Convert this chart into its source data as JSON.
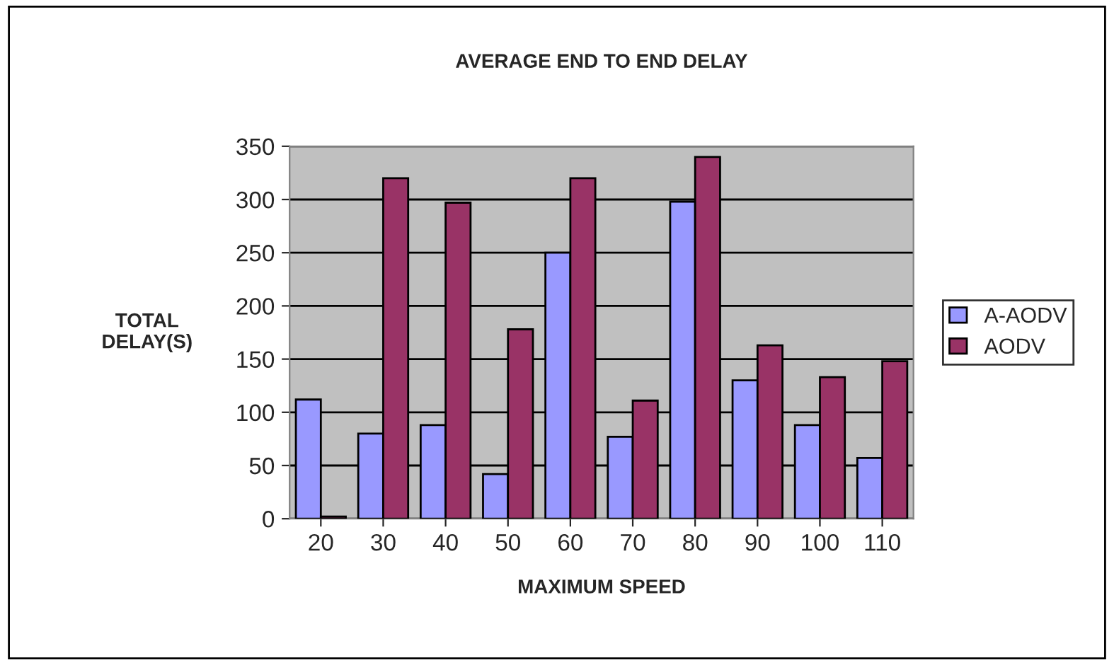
{
  "chart_data": {
    "type": "bar",
    "title": "AVERAGE END TO END DELAY",
    "xlabel": "MAXIMUM SPEED",
    "ylabel": "TOTAL\nDELAY(S)",
    "categories": [
      "20",
      "30",
      "40",
      "50",
      "60",
      "70",
      "80",
      "90",
      "100",
      "110"
    ],
    "series": [
      {
        "name": "A-AODV",
        "color": "#9999ff",
        "values": [
          112,
          80,
          88,
          42,
          250,
          77,
          298,
          130,
          88,
          57
        ]
      },
      {
        "name": "AODV",
        "color": "#993366",
        "values": [
          2,
          320,
          297,
          178,
          320,
          111,
          340,
          163,
          133,
          148
        ]
      }
    ],
    "ylim": [
      0,
      350
    ],
    "yticks": [
      0,
      50,
      100,
      150,
      200,
      250,
      300,
      350
    ],
    "grid": "y",
    "legend": "right"
  }
}
